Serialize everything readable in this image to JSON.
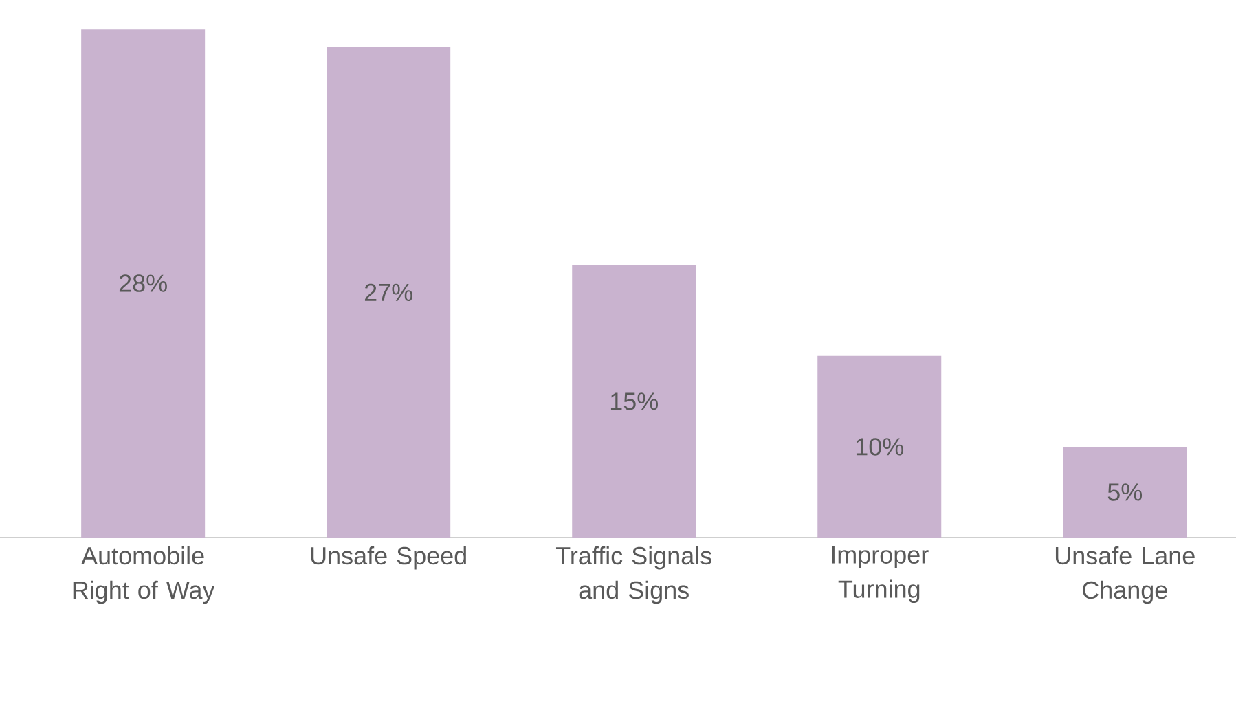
{
  "chart_data": {
    "type": "bar",
    "categories": [
      "Automobile Right of Way",
      "Unsafe Speed",
      "Traffic Signals and Signs",
      "Improper Turning",
      "Unsafe Lane Change"
    ],
    "values": [
      28,
      27,
      15,
      10,
      5
    ],
    "value_labels": [
      "28%",
      "27%",
      "15%",
      "10%",
      "5%"
    ],
    "color": "#c9b3cf"
  }
}
